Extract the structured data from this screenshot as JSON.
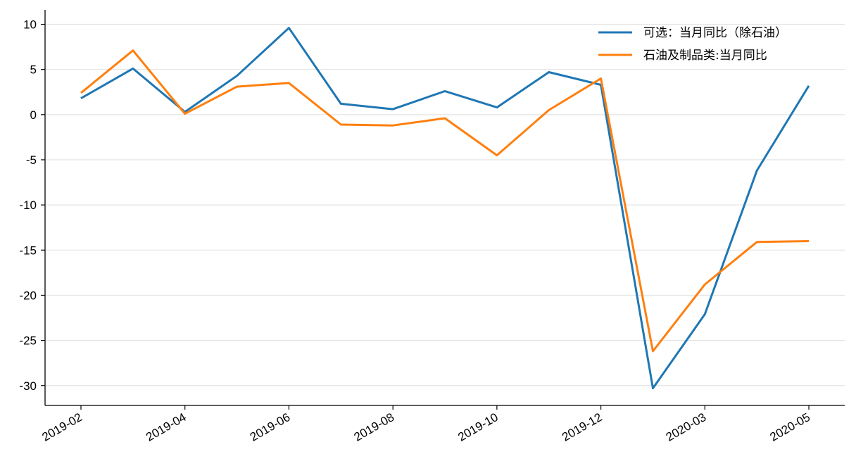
{
  "chart_data": {
    "type": "line",
    "title": "",
    "xlabel": "",
    "ylabel": "",
    "x": [
      "2019-02",
      "2019-03",
      "2019-04",
      "2019-05",
      "2019-06",
      "2019-07",
      "2019-08",
      "2019-09",
      "2019-10",
      "2019-11",
      "2019-12",
      "2020-02",
      "2020-03",
      "2020-04",
      "2020-05"
    ],
    "x_tick_labels": [
      "2019-02",
      "2019-04",
      "2019-06",
      "2019-08",
      "2019-10",
      "2019-12",
      "2020-03",
      "2020-05"
    ],
    "y_ticks": [
      10,
      5,
      0,
      -5,
      -10,
      -15,
      -20,
      -25,
      -30
    ],
    "ylim": [
      -32.2,
      11.6
    ],
    "grid": "horizontal",
    "legend_position": "top-right",
    "series": [
      {
        "name": "可选：当月同比（除石油）",
        "color": "#1f77b4",
        "values": [
          1.8,
          5.1,
          0.3,
          4.3,
          9.6,
          1.2,
          0.6,
          2.6,
          0.8,
          4.7,
          3.3,
          -30.3,
          -22.1,
          -6.2,
          3.2
        ]
      },
      {
        "name": "石油及制品类:当月同比",
        "color": "#ff7f0e",
        "values": [
          2.4,
          7.1,
          0.1,
          3.1,
          3.5,
          -1.1,
          -1.2,
          -0.4,
          -4.5,
          0.5,
          4.0,
          -26.2,
          -18.8,
          -14.1,
          -14.0
        ]
      }
    ]
  }
}
